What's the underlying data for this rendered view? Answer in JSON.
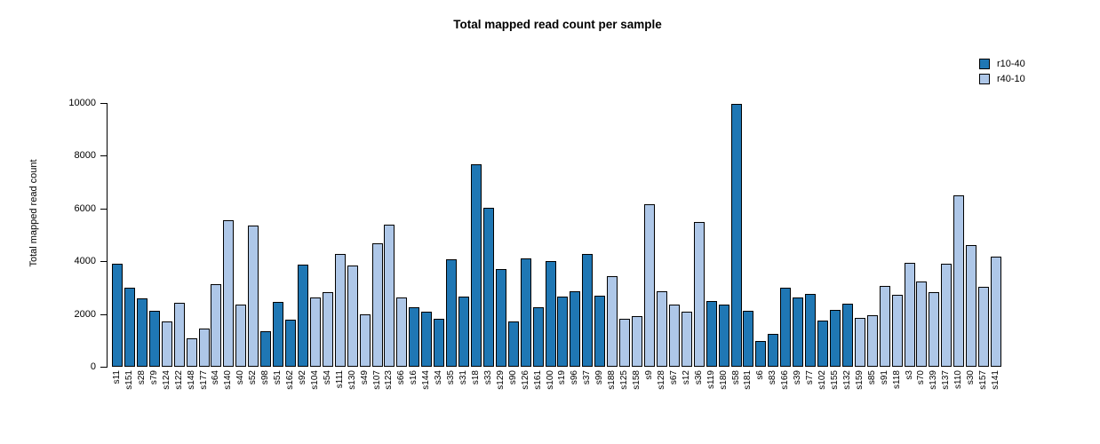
{
  "figure": {
    "background": "#ffffff",
    "axis_color": "#000000"
  },
  "chart_data": {
    "type": "bar",
    "title": "Total mapped read count per sample",
    "xlabel": "",
    "ylabel": "Total mapped read count",
    "ylim": [
      0,
      10000
    ],
    "yticks": [
      0,
      2000,
      4000,
      6000,
      8000,
      10000
    ],
    "grid": false,
    "legend_position": "top-right",
    "groups": [
      {
        "name": "r10-40",
        "color": "#1f77b4"
      },
      {
        "name": "r40-10",
        "color": "#aec7e8"
      }
    ],
    "bars": [
      {
        "sample": "s11",
        "value": 3890,
        "group": "r10-40"
      },
      {
        "sample": "s151",
        "value": 2990,
        "group": "r10-40"
      },
      {
        "sample": "s28",
        "value": 2580,
        "group": "r10-40"
      },
      {
        "sample": "s79",
        "value": 2110,
        "group": "r10-40"
      },
      {
        "sample": "s124",
        "value": 1720,
        "group": "r40-10"
      },
      {
        "sample": "s122",
        "value": 2410,
        "group": "r40-10"
      },
      {
        "sample": "s148",
        "value": 1080,
        "group": "r40-10"
      },
      {
        "sample": "s177",
        "value": 1440,
        "group": "r40-10"
      },
      {
        "sample": "s64",
        "value": 3120,
        "group": "r40-10"
      },
      {
        "sample": "s140",
        "value": 5560,
        "group": "r40-10"
      },
      {
        "sample": "s40",
        "value": 2370,
        "group": "r40-10"
      },
      {
        "sample": "s52",
        "value": 5340,
        "group": "r40-10"
      },
      {
        "sample": "s98",
        "value": 1360,
        "group": "r10-40"
      },
      {
        "sample": "s51",
        "value": 2460,
        "group": "r10-40"
      },
      {
        "sample": "s162",
        "value": 1780,
        "group": "r10-40"
      },
      {
        "sample": "s92",
        "value": 3870,
        "group": "r10-40"
      },
      {
        "sample": "s104",
        "value": 2640,
        "group": "r40-10"
      },
      {
        "sample": "s54",
        "value": 2820,
        "group": "r40-10"
      },
      {
        "sample": "s111",
        "value": 4290,
        "group": "r40-10"
      },
      {
        "sample": "s130",
        "value": 3830,
        "group": "r40-10"
      },
      {
        "sample": "s49",
        "value": 2000,
        "group": "r40-10"
      },
      {
        "sample": "s107",
        "value": 4670,
        "group": "r40-10"
      },
      {
        "sample": "s123",
        "value": 5390,
        "group": "r40-10"
      },
      {
        "sample": "s66",
        "value": 2630,
        "group": "r40-10"
      },
      {
        "sample": "s16",
        "value": 2260,
        "group": "r10-40"
      },
      {
        "sample": "s144",
        "value": 2090,
        "group": "r10-40"
      },
      {
        "sample": "s34",
        "value": 1830,
        "group": "r10-40"
      },
      {
        "sample": "s35",
        "value": 4090,
        "group": "r10-40"
      },
      {
        "sample": "s31",
        "value": 2670,
        "group": "r10-40"
      },
      {
        "sample": "s18",
        "value": 7660,
        "group": "r10-40"
      },
      {
        "sample": "s33",
        "value": 6020,
        "group": "r10-40"
      },
      {
        "sample": "s129",
        "value": 3700,
        "group": "r10-40"
      },
      {
        "sample": "s90",
        "value": 1710,
        "group": "r10-40"
      },
      {
        "sample": "s126",
        "value": 4110,
        "group": "r10-40"
      },
      {
        "sample": "s161",
        "value": 2250,
        "group": "r10-40"
      },
      {
        "sample": "s100",
        "value": 4000,
        "group": "r10-40"
      },
      {
        "sample": "s19",
        "value": 2650,
        "group": "r10-40"
      },
      {
        "sample": "s96",
        "value": 2850,
        "group": "r10-40"
      },
      {
        "sample": "s37",
        "value": 4270,
        "group": "r10-40"
      },
      {
        "sample": "s99",
        "value": 2700,
        "group": "r10-40"
      },
      {
        "sample": "s188",
        "value": 3450,
        "group": "r40-10"
      },
      {
        "sample": "s125",
        "value": 1830,
        "group": "r40-10"
      },
      {
        "sample": "s158",
        "value": 1910,
        "group": "r40-10"
      },
      {
        "sample": "s9",
        "value": 6170,
        "group": "r40-10"
      },
      {
        "sample": "s128",
        "value": 2850,
        "group": "r40-10"
      },
      {
        "sample": "s67",
        "value": 2370,
        "group": "r40-10"
      },
      {
        "sample": "s12",
        "value": 2100,
        "group": "r40-10"
      },
      {
        "sample": "s36",
        "value": 5500,
        "group": "r40-10"
      },
      {
        "sample": "s119",
        "value": 2490,
        "group": "r10-40"
      },
      {
        "sample": "s180",
        "value": 2350,
        "group": "r10-40"
      },
      {
        "sample": "s58",
        "value": 9950,
        "group": "r10-40"
      },
      {
        "sample": "s181",
        "value": 2120,
        "group": "r10-40"
      },
      {
        "sample": "s6",
        "value": 990,
        "group": "r10-40"
      },
      {
        "sample": "s83",
        "value": 1250,
        "group": "r10-40"
      },
      {
        "sample": "s166",
        "value": 2980,
        "group": "r10-40"
      },
      {
        "sample": "s39",
        "value": 2610,
        "group": "r10-40"
      },
      {
        "sample": "s77",
        "value": 2750,
        "group": "r10-40"
      },
      {
        "sample": "s102",
        "value": 1760,
        "group": "r10-40"
      },
      {
        "sample": "s155",
        "value": 2170,
        "group": "r10-40"
      },
      {
        "sample": "s132",
        "value": 2400,
        "group": "r10-40"
      },
      {
        "sample": "s159",
        "value": 1850,
        "group": "r40-10"
      },
      {
        "sample": "s85",
        "value": 1940,
        "group": "r40-10"
      },
      {
        "sample": "s91",
        "value": 3050,
        "group": "r40-10"
      },
      {
        "sample": "s118",
        "value": 2730,
        "group": "r40-10"
      },
      {
        "sample": "s3",
        "value": 3940,
        "group": "r40-10"
      },
      {
        "sample": "s70",
        "value": 3230,
        "group": "r40-10"
      },
      {
        "sample": "s139",
        "value": 2820,
        "group": "r40-10"
      },
      {
        "sample": "s137",
        "value": 3910,
        "group": "r40-10"
      },
      {
        "sample": "s110",
        "value": 6510,
        "group": "r40-10"
      },
      {
        "sample": "s30",
        "value": 4600,
        "group": "r40-10"
      },
      {
        "sample": "s157",
        "value": 3030,
        "group": "r40-10"
      },
      {
        "sample": "s141",
        "value": 4160,
        "group": "r40-10"
      }
    ]
  }
}
